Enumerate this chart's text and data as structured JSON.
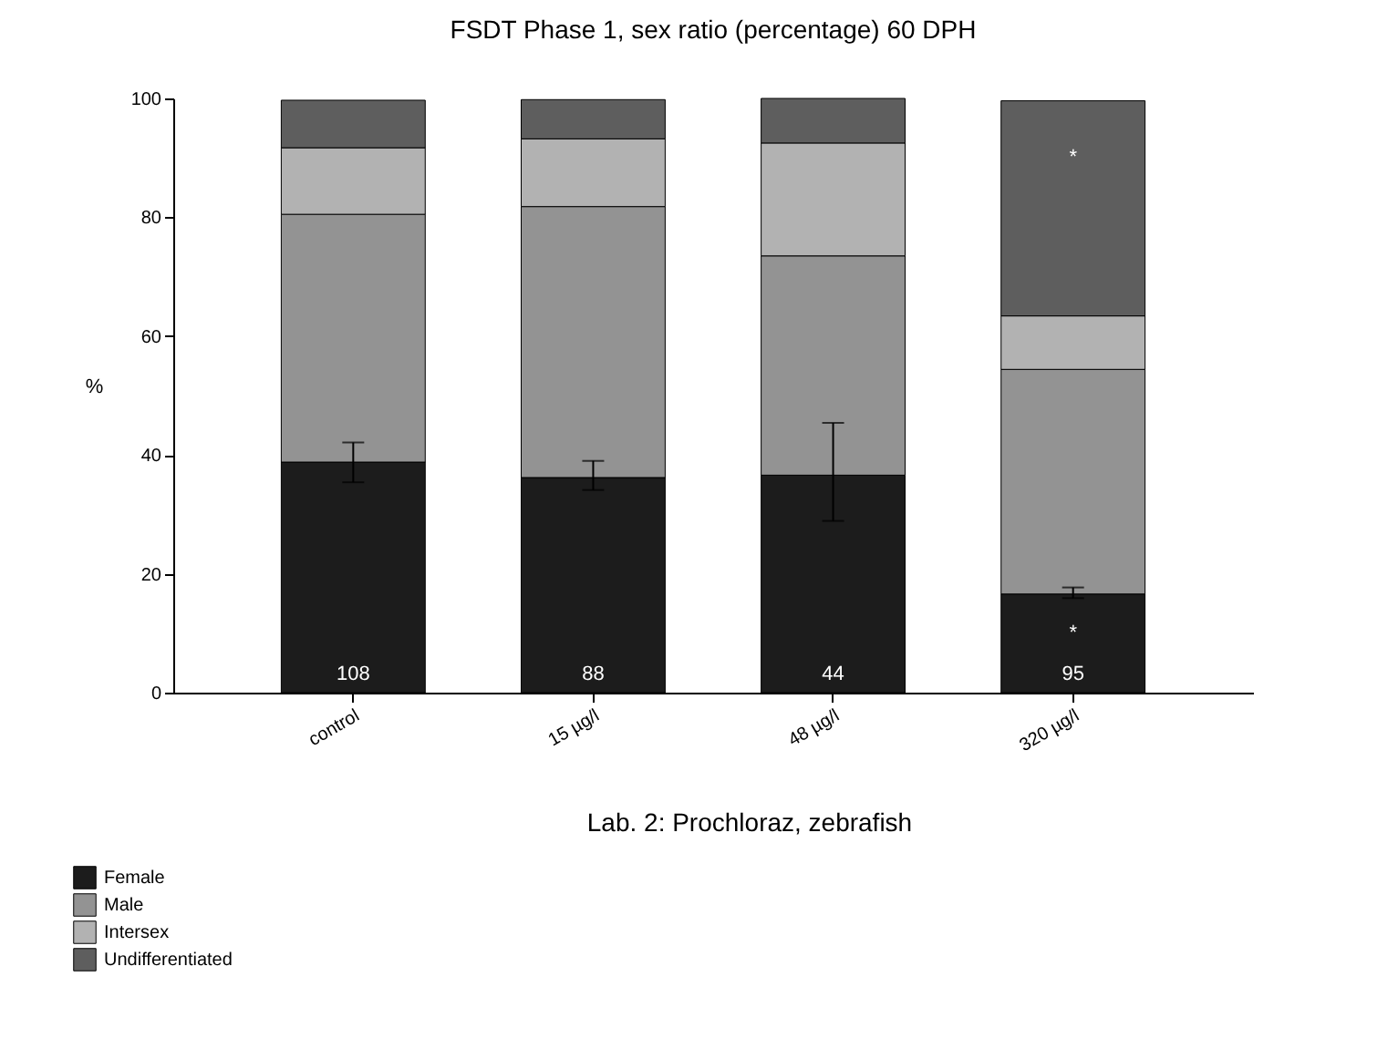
{
  "chart_data": {
    "type": "bar",
    "title": "FSDT Phase 1, sex ratio (percentage) 60 DPH",
    "subtitle": "Lab. 2: Prochloraz, zebrafish",
    "ylabel": "%",
    "stacked": true,
    "categories": [
      "control",
      "15 µg/l",
      "48 µg/l",
      "320 µg/l"
    ],
    "series": [
      {
        "name": "Female",
        "color": "#1c1c1c",
        "values": [
          38.8,
          36.2,
          36.6,
          16.6
        ],
        "errors": [
          [
            35.4,
            42.1
          ],
          [
            34.1,
            39.0
          ],
          [
            28.9,
            45.4
          ],
          [
            15.9,
            17.7
          ]
        ]
      },
      {
        "name": "Male",
        "color": "#939393",
        "values": [
          41.7,
          45.6,
          36.9,
          37.8
        ]
      },
      {
        "name": "Intersex",
        "color": "#b2b2b2",
        "values": [
          11.2,
          11.4,
          19.0,
          9.0
        ]
      },
      {
        "name": "Undifferentiated",
        "color": "#5e5e5e",
        "values": [
          8.0,
          6.6,
          7.5,
          36.2
        ]
      }
    ],
    "ylim": [
      0,
      100
    ],
    "yticks": [
      0,
      20,
      40,
      60,
      80,
      100
    ],
    "grid": false,
    "legend": "bottom left",
    "annotations": [
      "108",
      "88",
      "44",
      "95",
      "*",
      "*"
    ]
  }
}
